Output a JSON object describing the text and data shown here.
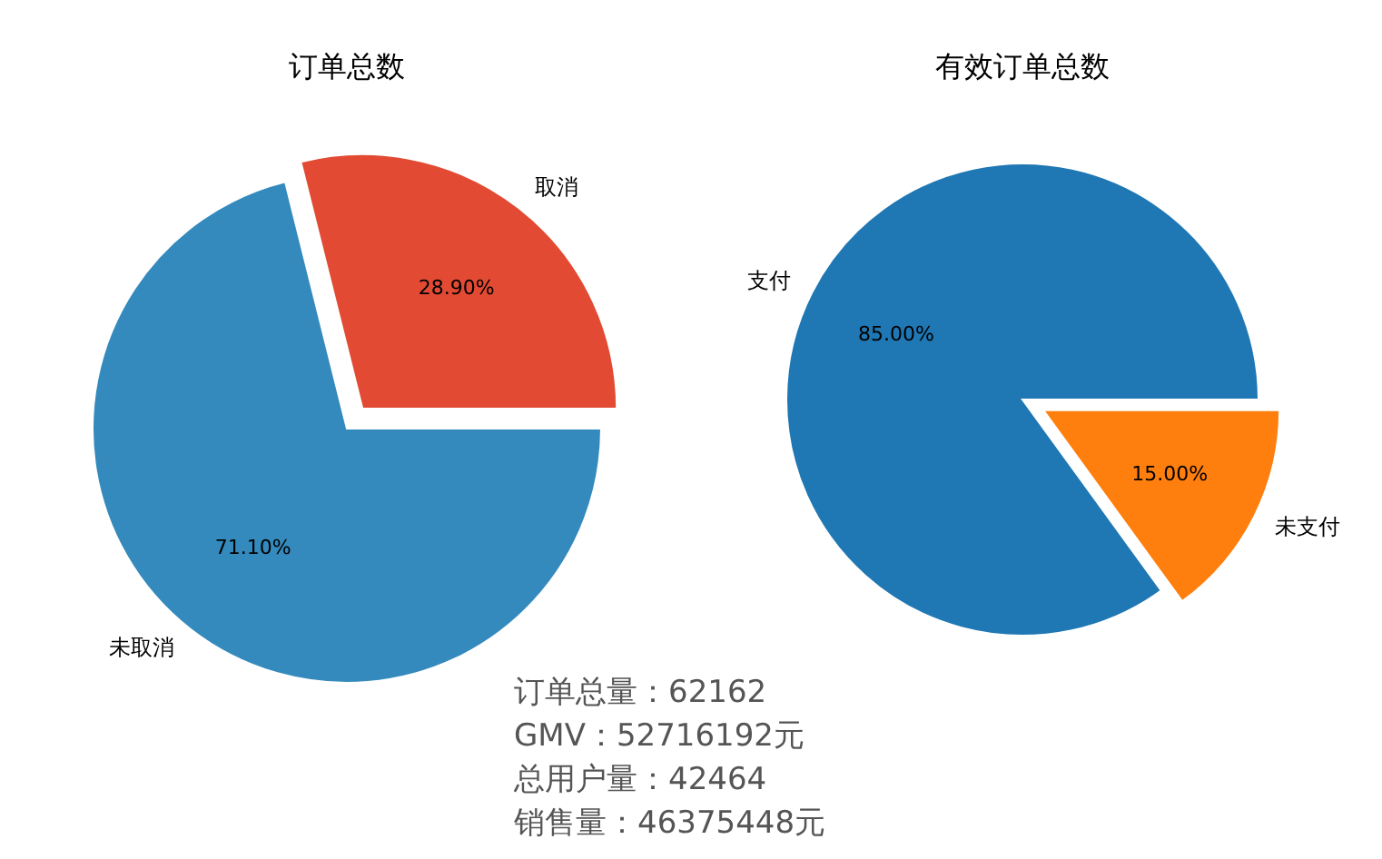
{
  "chart_data": [
    {
      "type": "pie",
      "title": "订单总数",
      "categories": [
        "取消",
        "未取消"
      ],
      "values": [
        28.9,
        71.1
      ],
      "colors": [
        "#e24a33",
        "#348abd"
      ],
      "value_labels": [
        "28.90%",
        "71.10%"
      ]
    },
    {
      "type": "pie",
      "title": "有效订单总数",
      "categories": [
        "支付",
        "未支付"
      ],
      "values": [
        85,
        15
      ],
      "colors": [
        "#1f77b4",
        "#ff7f0e"
      ],
      "value_labels": [
        "85.00%",
        "15.00%"
      ]
    },
    {
      "type": "other",
      "annotations": [
        "订单总量：62162",
        "GMV：52716192元",
        "总用户量：42464",
        "销售量：46375448元"
      ]
    }
  ]
}
